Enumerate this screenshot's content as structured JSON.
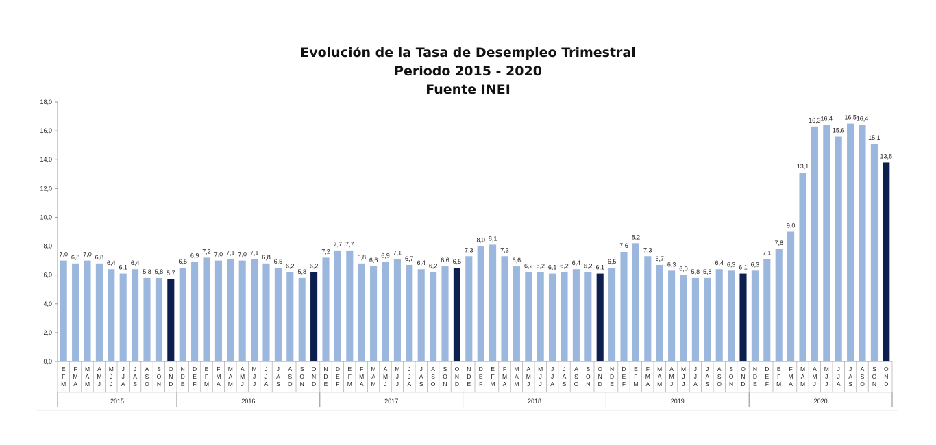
{
  "title": {
    "line1": "Evolución de la Tasa de Desempleo Trimestral",
    "line2": "Periodo 2015 - 2020",
    "line3": "Fuente INEI"
  },
  "colors": {
    "bar": "#9bb7dd",
    "bar_highlight": "#0d1f4f",
    "axis": "#999999"
  },
  "chart_data": {
    "type": "bar",
    "ylim": [
      0,
      18
    ],
    "yticks": [
      "0,0",
      "2,0",
      "4,0",
      "6,0",
      "8,0",
      "10,0",
      "12,0",
      "14,0",
      "16,0",
      "18,0"
    ],
    "grid": false,
    "categories": [
      "EFM",
      "FMA",
      "MAM",
      "AMJ",
      "MJJ",
      "JJA",
      "JAS",
      "ASO",
      "SON",
      "OND",
      "NDE",
      "DEF",
      "EFM",
      "FMA",
      "MAM",
      "AMJ",
      "MJJ",
      "JJA",
      "JAS",
      "ASO",
      "SON",
      "OND",
      "NDE",
      "DEF",
      "EFM",
      "FMA",
      "MAM",
      "AMJ",
      "MJJ",
      "JJA",
      "JAS",
      "ASO",
      "SON",
      "OND",
      "NDE",
      "DEF",
      "EFM",
      "FMA",
      "MAM",
      "AMJ",
      "MJJ",
      "JJA",
      "JAS",
      "ASO",
      "SON",
      "OND",
      "NDE",
      "DEF",
      "EFM",
      "FMA",
      "MAM",
      "AMJ",
      "MJJ",
      "JJA",
      "JAS",
      "ASO",
      "SON",
      "OND",
      "NDE",
      "DEF",
      "EFM",
      "FMA",
      "MAM",
      "AMJ",
      "MJJ",
      "JJA",
      "JAS",
      "ASO",
      "SON",
      "OND"
    ],
    "values": [
      7.0,
      6.8,
      7.0,
      6.8,
      6.4,
      6.1,
      6.4,
      5.8,
      5.8,
      5.7,
      6.5,
      6.9,
      7.2,
      7.0,
      7.1,
      7.0,
      7.1,
      6.8,
      6.5,
      6.2,
      5.8,
      6.2,
      7.2,
      7.7,
      7.7,
      6.8,
      6.6,
      6.9,
      7.1,
      6.7,
      6.4,
      6.2,
      6.6,
      6.5,
      7.3,
      8.0,
      8.1,
      7.3,
      6.6,
      6.2,
      6.2,
      6.1,
      6.2,
      6.4,
      6.2,
      6.1,
      6.5,
      7.6,
      8.2,
      7.3,
      6.7,
      6.3,
      6.0,
      5.8,
      5.8,
      6.4,
      6.3,
      6.1,
      6.3,
      7.1,
      7.8,
      9.0,
      13.1,
      16.3,
      16.4,
      15.6,
      16.5,
      16.4,
      15.1,
      13.8
    ],
    "value_labels": [
      "7,0",
      "6,8",
      "7,0",
      "6,8",
      "6,4",
      "6,1",
      "6,4",
      "5,8",
      "5,8",
      "5,7",
      "6,5",
      "6,9",
      "7,2",
      "7,0",
      "7,1",
      "7,0",
      "7,1",
      "6,8",
      "6,5",
      "6,2",
      "5,8",
      "6,2",
      "7,2",
      "7,7",
      "7,7",
      "6,8",
      "6,6",
      "6,9",
      "7,1",
      "6,7",
      "6,4",
      "6,2",
      "6,6",
      "6,5",
      "7,3",
      "8,0",
      "8,1",
      "7,3",
      "6,6",
      "6,2",
      "6,2",
      "6,1",
      "6,2",
      "6,4",
      "6,2",
      "6,1",
      "6,5",
      "7,6",
      "8,2",
      "7,3",
      "6,7",
      "6,3",
      "6,0",
      "5,8",
      "5,8",
      "6,4",
      "6,3",
      "6,1",
      "6,3",
      "7,1",
      "7,8",
      "9,0",
      "13,1",
      "16,3",
      "16,4",
      "15,6",
      "16,5",
      "16,4",
      "15,1",
      "13,8"
    ],
    "highlight_indices": [
      9,
      21,
      33,
      45,
      57,
      69
    ],
    "groups": [
      {
        "label": "2015",
        "count": 10
      },
      {
        "label": "2016",
        "count": 12
      },
      {
        "label": "2017",
        "count": 12
      },
      {
        "label": "2018",
        "count": 12
      },
      {
        "label": "2019",
        "count": 12
      },
      {
        "label": "2020",
        "count": 12
      }
    ]
  }
}
